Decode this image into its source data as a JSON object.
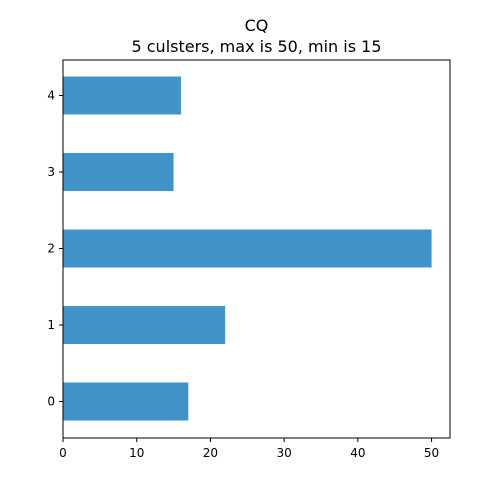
{
  "chart_data": {
    "type": "bar",
    "orientation": "horizontal",
    "title": "CQ",
    "subtitle": "5 culsters, max is 50, min is 15",
    "xlabel": "",
    "ylabel": "",
    "categories": [
      "0",
      "1",
      "2",
      "3",
      "4"
    ],
    "values": [
      17,
      22,
      50,
      15,
      16
    ],
    "xlim": [
      0,
      52.5
    ],
    "x_ticks": [
      0,
      10,
      20,
      30,
      40,
      50
    ],
    "grid": false,
    "legend": "none",
    "bar_color": "#4194c9"
  }
}
